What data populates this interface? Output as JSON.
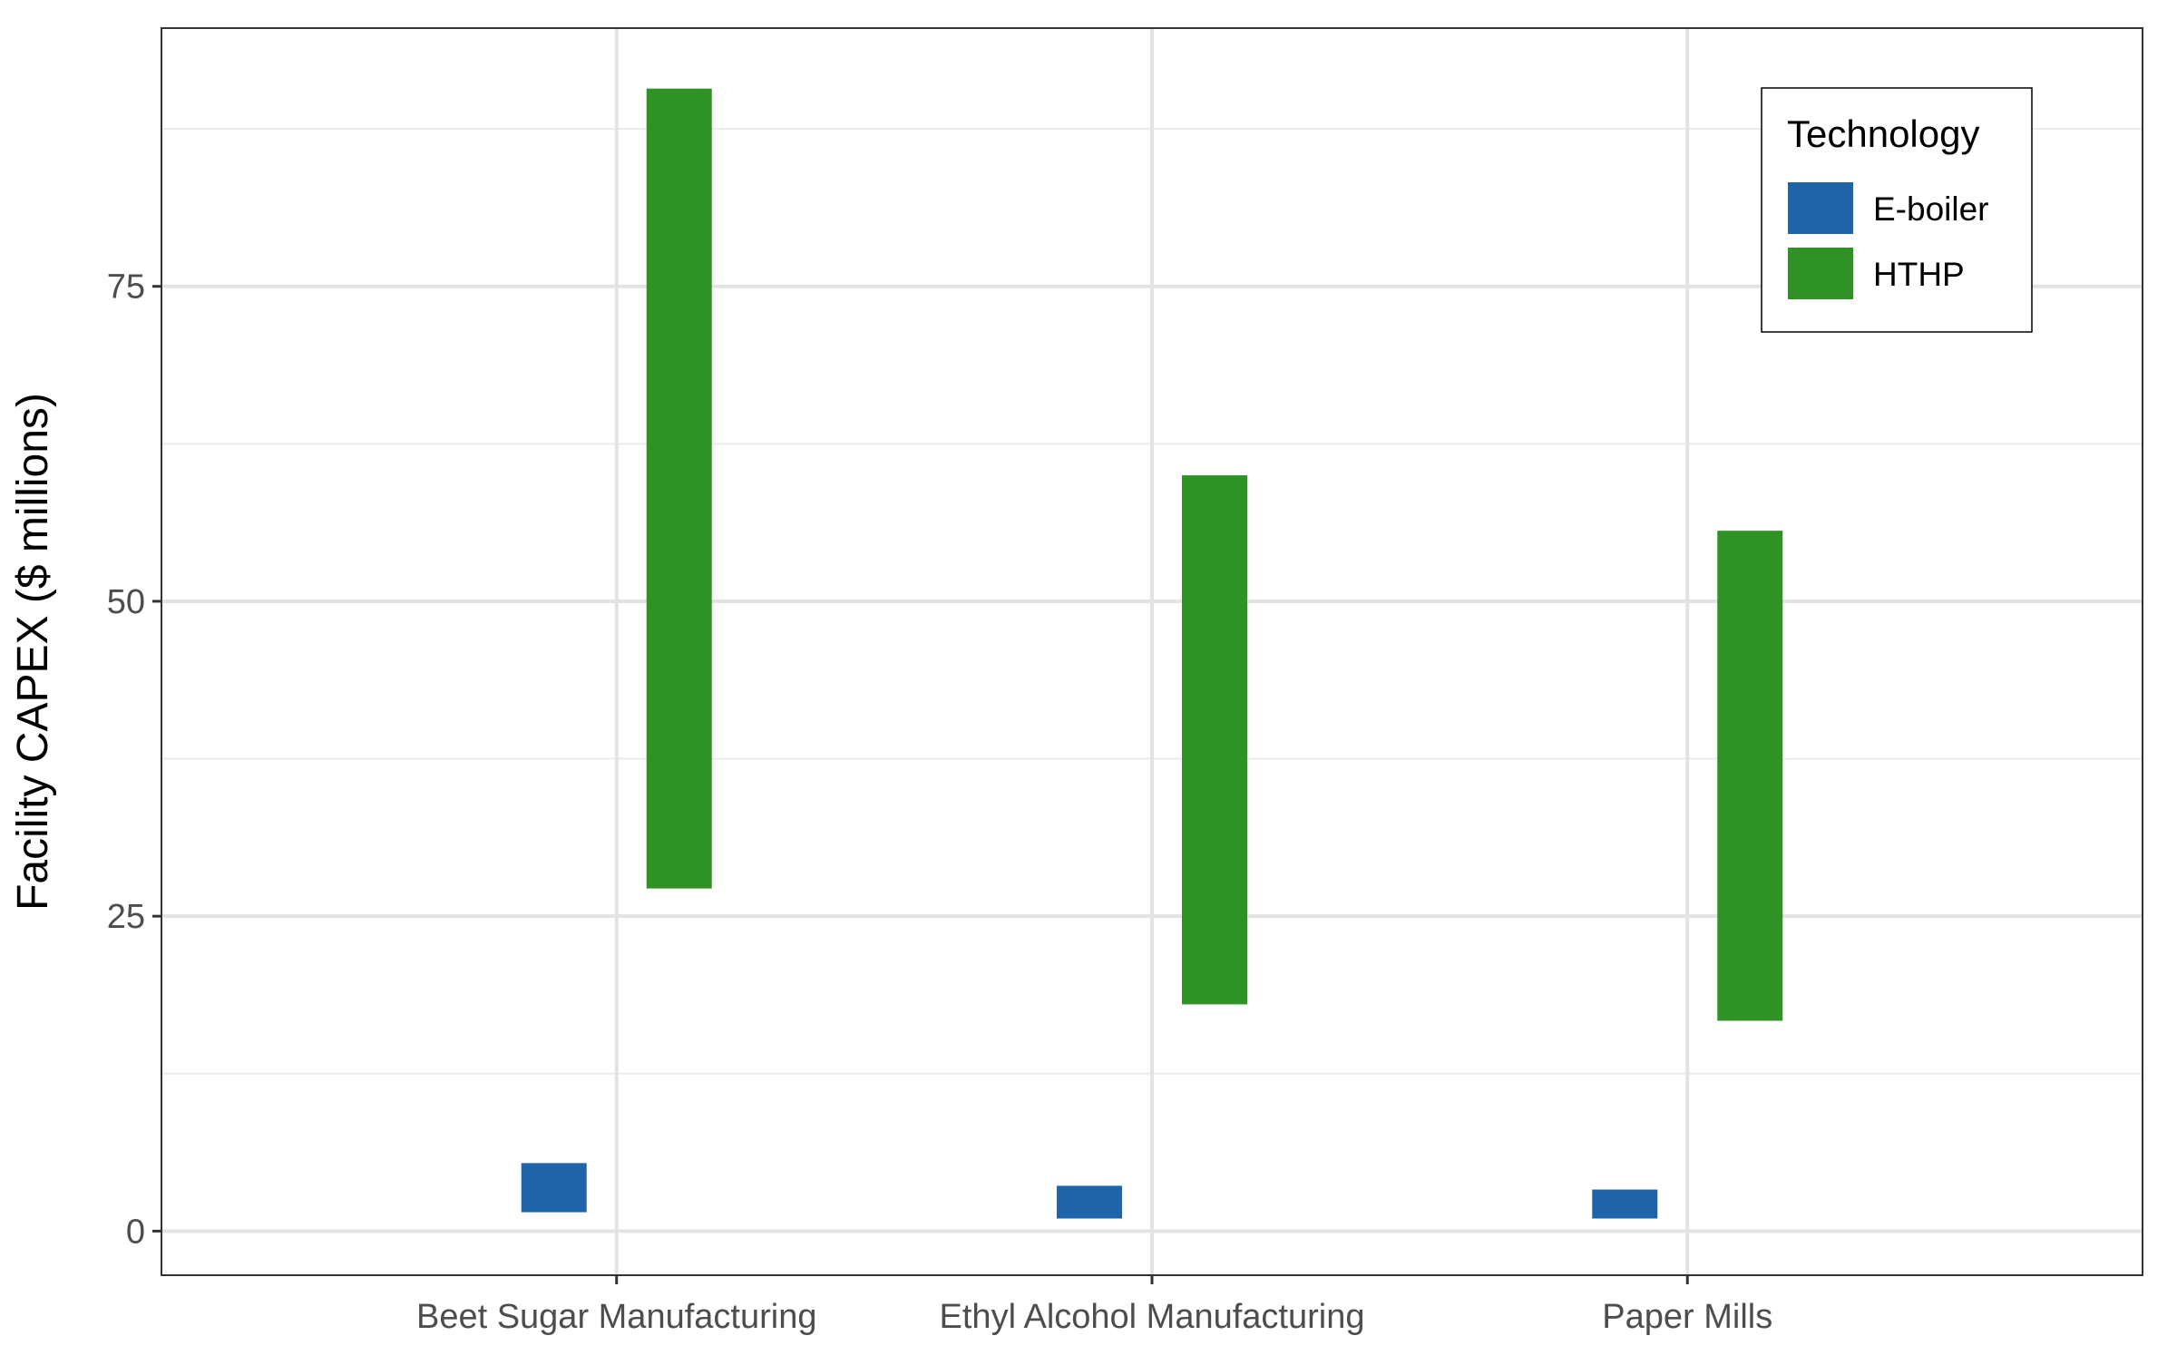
{
  "chart_data": {
    "type": "bar",
    "subtype": "floating-range",
    "title": "",
    "xlabel": "",
    "ylabel": "Facility CAPEX ($ millions)",
    "ylim": [
      -3.5,
      95.5
    ],
    "yticks": [
      0,
      25,
      50,
      75
    ],
    "grid": true,
    "legend": {
      "title": "Technology",
      "position": "top-right"
    },
    "categories": [
      "Beet Sugar Manufacturing",
      "Ethyl Alcohol Manufacturing",
      "Paper Mills"
    ],
    "series": [
      {
        "name": "E-boiler",
        "color": "#1f63a8",
        "ranges": [
          [
            1.5,
            5.4
          ],
          [
            1.0,
            3.6
          ],
          [
            1.0,
            3.3
          ]
        ]
      },
      {
        "name": "HTHP",
        "color": "#2e9324",
        "ranges": [
          [
            27.2,
            90.7
          ],
          [
            18.0,
            60.0
          ],
          [
            16.7,
            55.6
          ]
        ]
      }
    ]
  }
}
